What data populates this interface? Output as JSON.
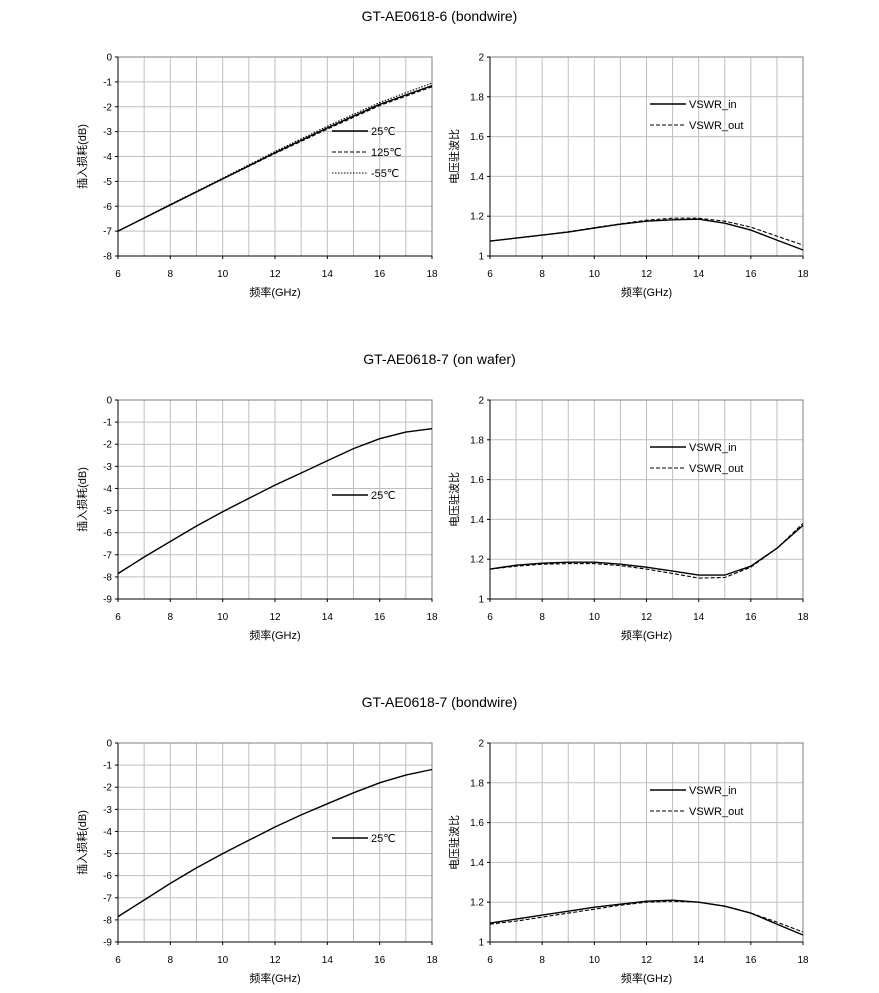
{
  "groups": [
    {
      "title": "GT-AE0618-6  (bondwire)"
    },
    {
      "title": "GT-AE0618-7  (on wafer)"
    },
    {
      "title": "GT-AE0618-7  (bondwire)"
    }
  ],
  "chart_data": [
    {
      "type": "line",
      "group": 0,
      "position": "left",
      "xlabel": "频率(GHz)",
      "ylabel": "插入损耗(dB)",
      "xlim": [
        6,
        18
      ],
      "ylim": [
        -8,
        0
      ],
      "xticks": [
        6,
        8,
        10,
        12,
        14,
        16,
        18
      ],
      "yticks": [
        0,
        -1,
        -2,
        -3,
        -4,
        -5,
        -6,
        -7,
        -8
      ],
      "grid": true,
      "legend": "right-middle",
      "series": [
        {
          "name": "25℃",
          "dash": "solid",
          "x": [
            6,
            8,
            10,
            12,
            14,
            16,
            18
          ],
          "y": [
            -7.0,
            -5.95,
            -4.9,
            -3.85,
            -2.85,
            -1.9,
            -1.15
          ]
        },
        {
          "name": "125℃",
          "dash": "dashed",
          "x": [
            6,
            8,
            10,
            12,
            14,
            16,
            18
          ],
          "y": [
            -7.0,
            -5.95,
            -4.9,
            -3.88,
            -2.9,
            -1.95,
            -1.2
          ]
        },
        {
          "name": "-55℃",
          "dash": "dotted",
          "x": [
            6,
            8,
            10,
            12,
            14,
            16,
            18
          ],
          "y": [
            -7.0,
            -5.92,
            -4.87,
            -3.8,
            -2.78,
            -1.83,
            -1.05
          ]
        }
      ]
    },
    {
      "type": "line",
      "group": 0,
      "position": "right",
      "xlabel": "频率(GHz)",
      "ylabel": "电压驻波比",
      "xlim": [
        6,
        18
      ],
      "ylim": [
        1,
        2
      ],
      "xticks": [
        6,
        8,
        10,
        12,
        14,
        16,
        18
      ],
      "yticks": [
        1,
        1.2,
        1.4,
        1.6,
        1.8,
        2
      ],
      "grid": true,
      "legend": "top-right",
      "series": [
        {
          "name": "VSWR_in",
          "dash": "solid",
          "x": [
            6,
            7,
            8,
            9,
            10,
            11,
            12,
            13,
            14,
            15,
            16,
            17,
            18
          ],
          "y": [
            1.075,
            1.09,
            1.105,
            1.12,
            1.14,
            1.16,
            1.175,
            1.182,
            1.185,
            1.165,
            1.13,
            1.08,
            1.03
          ]
        },
        {
          "name": "VSWR_out",
          "dash": "dashed",
          "x": [
            6,
            7,
            8,
            9,
            10,
            11,
            12,
            13,
            14,
            15,
            16,
            17,
            18
          ],
          "y": [
            1.075,
            1.09,
            1.105,
            1.122,
            1.142,
            1.162,
            1.18,
            1.19,
            1.19,
            1.175,
            1.145,
            1.1,
            1.055
          ]
        }
      ]
    },
    {
      "type": "line",
      "group": 1,
      "position": "left",
      "xlabel": "频率(GHz)",
      "ylabel": "插入损耗(dB)",
      "xlim": [
        6,
        18
      ],
      "ylim": [
        -9,
        0
      ],
      "xticks": [
        6,
        8,
        10,
        12,
        14,
        16,
        18
      ],
      "yticks": [
        0,
        -1,
        -2,
        -3,
        -4,
        -5,
        -6,
        -7,
        -8,
        -9
      ],
      "grid": true,
      "legend": "right-middle",
      "series": [
        {
          "name": "25℃",
          "dash": "solid",
          "x": [
            6,
            7,
            8,
            9,
            10,
            11,
            12,
            13,
            14,
            15,
            16,
            17,
            18
          ],
          "y": [
            -7.85,
            -7.1,
            -6.4,
            -5.7,
            -5.05,
            -4.45,
            -3.85,
            -3.3,
            -2.75,
            -2.2,
            -1.75,
            -1.45,
            -1.3
          ]
        }
      ]
    },
    {
      "type": "line",
      "group": 1,
      "position": "right",
      "xlabel": "频率(GHz)",
      "ylabel": "电压驻波比",
      "xlim": [
        6,
        18
      ],
      "ylim": [
        1,
        2
      ],
      "xticks": [
        6,
        8,
        10,
        12,
        14,
        16,
        18
      ],
      "yticks": [
        1,
        1.2,
        1.4,
        1.6,
        1.8,
        2
      ],
      "grid": true,
      "legend": "top-right",
      "series": [
        {
          "name": "VSWR_in",
          "dash": "solid",
          "x": [
            6,
            7,
            8,
            9,
            10,
            11,
            12,
            13,
            14,
            15,
            16,
            17,
            18
          ],
          "y": [
            1.15,
            1.17,
            1.18,
            1.185,
            1.185,
            1.175,
            1.16,
            1.14,
            1.12,
            1.12,
            1.165,
            1.255,
            1.37
          ]
        },
        {
          "name": "VSWR_out",
          "dash": "dashed",
          "x": [
            6,
            7,
            8,
            9,
            10,
            11,
            12,
            13,
            14,
            15,
            16,
            17,
            18
          ],
          "y": [
            1.15,
            1.165,
            1.175,
            1.178,
            1.178,
            1.168,
            1.15,
            1.128,
            1.105,
            1.108,
            1.16,
            1.255,
            1.38
          ]
        }
      ]
    },
    {
      "type": "line",
      "group": 2,
      "position": "left",
      "xlabel": "频率(GHz)",
      "ylabel": "插入损耗(dB)",
      "xlim": [
        6,
        18
      ],
      "ylim": [
        -9,
        0
      ],
      "xticks": [
        6,
        8,
        10,
        12,
        14,
        16,
        18
      ],
      "yticks": [
        0,
        -1,
        -2,
        -3,
        -4,
        -5,
        -6,
        -7,
        -8,
        -9
      ],
      "grid": true,
      "legend": "right-middle",
      "series": [
        {
          "name": "25℃",
          "dash": "solid",
          "x": [
            6,
            7,
            8,
            9,
            10,
            11,
            12,
            13,
            14,
            15,
            16,
            17,
            18
          ],
          "y": [
            -7.85,
            -7.1,
            -6.35,
            -5.65,
            -5.0,
            -4.4,
            -3.8,
            -3.25,
            -2.75,
            -2.25,
            -1.8,
            -1.45,
            -1.2
          ]
        }
      ]
    },
    {
      "type": "line",
      "group": 2,
      "position": "right",
      "xlabel": "频率(GHz)",
      "ylabel": "电压驻波比",
      "xlim": [
        6,
        18
      ],
      "ylim": [
        1,
        2
      ],
      "xticks": [
        6,
        8,
        10,
        12,
        14,
        16,
        18
      ],
      "yticks": [
        1,
        1.2,
        1.4,
        1.6,
        1.8,
        2
      ],
      "grid": true,
      "legend": "top-right",
      "series": [
        {
          "name": "VSWR_in",
          "dash": "solid",
          "x": [
            6,
            7,
            8,
            9,
            10,
            11,
            12,
            13,
            14,
            15,
            16,
            17,
            18
          ],
          "y": [
            1.095,
            1.115,
            1.135,
            1.155,
            1.175,
            1.19,
            1.205,
            1.21,
            1.2,
            1.18,
            1.145,
            1.09,
            1.035
          ]
        },
        {
          "name": "VSWR_out",
          "dash": "dashed",
          "x": [
            6,
            7,
            8,
            9,
            10,
            11,
            12,
            13,
            14,
            15,
            16,
            17,
            18
          ],
          "y": [
            1.09,
            1.105,
            1.125,
            1.145,
            1.165,
            1.185,
            1.2,
            1.205,
            1.2,
            1.18,
            1.145,
            1.1,
            1.05
          ]
        }
      ]
    }
  ]
}
